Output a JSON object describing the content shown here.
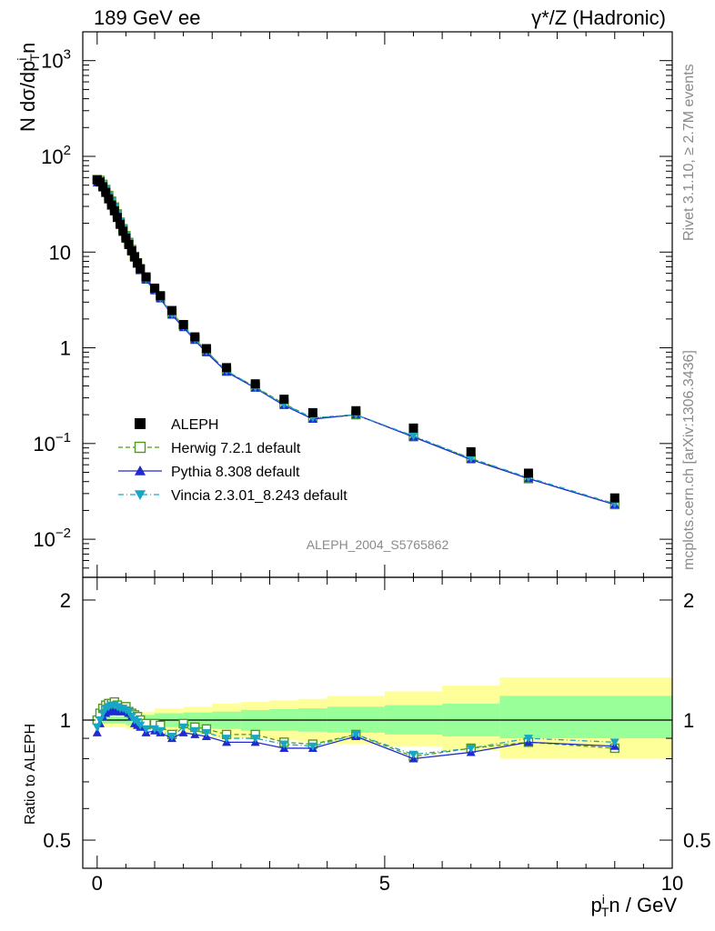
{
  "header": {
    "left_title": "189 GeV ee",
    "right_title": "γ*/Z (Hadronic)"
  },
  "side_labels": {
    "rivet": "Rivet 3.1.10, ≥ 2.7M events",
    "mcplots": "mcplots.cern.ch [arXiv:1306.3436]"
  },
  "watermark": "ALEPH_2004_S5765862",
  "chart_data": [
    {
      "panel": "main",
      "type": "scatter",
      "yscale": "log",
      "ylabel": "N dσ/dp",
      "ylabel_sup": "i",
      "ylabel_sub": "T",
      "ylabel_tail": "n",
      "xlim": [
        -0.25,
        10.0
      ],
      "ylim": [
        0.004,
        2000
      ],
      "yticks": [
        {
          "value": 0.01,
          "base": "10",
          "exp": "−2"
        },
        {
          "value": 0.1,
          "base": "10",
          "exp": "−1"
        },
        {
          "value": 1,
          "base": "1",
          "exp": ""
        },
        {
          "value": 10,
          "base": "10",
          "exp": ""
        },
        {
          "value": 100,
          "base": "10",
          "exp": "2"
        },
        {
          "value": 1000,
          "base": "10",
          "exp": "3"
        }
      ],
      "x": [
        0.0,
        0.05,
        0.1,
        0.15,
        0.2,
        0.25,
        0.3,
        0.35,
        0.4,
        0.45,
        0.5,
        0.55,
        0.6,
        0.65,
        0.7,
        0.75,
        0.85,
        1.0,
        1.1,
        1.3,
        1.5,
        1.7,
        1.9,
        2.25,
        2.75,
        3.25,
        3.75,
        4.5,
        5.5,
        6.5,
        7.5,
        9.0
      ],
      "series": [
        {
          "name": "ALEPH",
          "color": "#000000",
          "marker": "square-filled",
          "values": [
            57,
            54,
            48,
            42,
            36,
            31,
            27,
            23,
            19.5,
            16.5,
            14,
            12,
            10.3,
            8.9,
            7.7,
            6.7,
            5.5,
            4.2,
            3.5,
            2.45,
            1.75,
            1.3,
            0.98,
            0.62,
            0.42,
            0.29,
            0.21,
            0.22,
            0.145,
            0.082,
            0.049,
            0.027
          ]
        },
        {
          "name": "Herwig 7.2.1 default",
          "color": "#4f9a1e",
          "marker": "square-open",
          "dash": "5,3",
          "values": [
            57,
            56,
            51,
            45,
            39,
            34,
            29.5,
            25,
            20.5,
            17.5,
            14.8,
            12.6,
            10.6,
            9.0,
            7.7,
            6.6,
            5.3,
            4.1,
            3.4,
            2.3,
            1.72,
            1.24,
            0.93,
            0.57,
            0.39,
            0.26,
            0.185,
            0.2,
            0.118,
            0.07,
            0.043,
            0.023
          ]
        },
        {
          "name": "Pythia 8.308 default",
          "color": "#1f2ad1",
          "marker": "triangle-up-filled",
          "values": [
            53,
            53,
            49,
            43.5,
            38,
            33,
            28.5,
            24.3,
            20.5,
            17.3,
            14.5,
            12.3,
            10.3,
            8.7,
            7.5,
            6.4,
            5.1,
            3.95,
            3.25,
            2.2,
            1.63,
            1.2,
            0.89,
            0.56,
            0.38,
            0.25,
            0.18,
            0.2,
            0.117,
            0.068,
            0.043,
            0.023
          ]
        },
        {
          "name": "Vincia 2.3.01_8.243 default",
          "color": "#17a6c4",
          "marker": "triangle-down-filled",
          "dash": "6,3,1,3",
          "values": [
            55,
            54.5,
            50.5,
            45,
            39,
            34,
            29.5,
            25,
            21,
            17.7,
            14.8,
            12.6,
            10.5,
            8.9,
            7.6,
            6.5,
            5.2,
            4.0,
            3.3,
            2.25,
            1.68,
            1.23,
            0.92,
            0.575,
            0.385,
            0.255,
            0.185,
            0.2,
            0.12,
            0.07,
            0.044,
            0.0235
          ]
        }
      ]
    },
    {
      "panel": "ratio",
      "type": "line",
      "ylabel": "Ratio to ALEPH",
      "xlabel": "p",
      "xlabel_sup": "i",
      "xlabel_sub": "T",
      "xlabel_tail": "n / GeV",
      "xlim": [
        -0.25,
        10.0
      ],
      "ylim": [
        0.425,
        2.28
      ],
      "yscale": "log",
      "yticks": [
        "0.5",
        "1",
        "2"
      ],
      "xticks": [
        "0",
        "5",
        "10"
      ],
      "reference_line": 1.0,
      "uncertainty_bands": {
        "x_edges": [
          0.0,
          0.5,
          1.0,
          1.5,
          2.0,
          2.5,
          3.0,
          3.5,
          4.0,
          5.0,
          6.0,
          7.0,
          10.0
        ],
        "yellow_low": [
          0.96,
          0.95,
          0.93,
          0.92,
          0.9,
          0.9,
          0.89,
          0.88,
          0.87,
          0.86,
          0.84,
          0.8
        ],
        "yellow_high": [
          1.04,
          1.05,
          1.07,
          1.08,
          1.1,
          1.11,
          1.12,
          1.13,
          1.15,
          1.18,
          1.22,
          1.28
        ],
        "green_low": [
          0.98,
          0.97,
          0.96,
          0.955,
          0.95,
          0.94,
          0.94,
          0.935,
          0.93,
          0.92,
          0.91,
          0.9
        ],
        "green_high": [
          1.02,
          1.03,
          1.04,
          1.045,
          1.05,
          1.06,
          1.065,
          1.07,
          1.08,
          1.09,
          1.1,
          1.15
        ],
        "yellow_color": "#ffff99",
        "green_color": "#99ff99"
      },
      "x": [
        0.0,
        0.05,
        0.1,
        0.15,
        0.2,
        0.25,
        0.3,
        0.35,
        0.4,
        0.45,
        0.5,
        0.55,
        0.6,
        0.65,
        0.7,
        0.75,
        0.85,
        1.0,
        1.1,
        1.3,
        1.5,
        1.7,
        1.9,
        2.25,
        2.75,
        3.25,
        3.75,
        4.5,
        5.5,
        6.5,
        7.5,
        9.0
      ],
      "series": [
        {
          "name": "Herwig 7.2.1 default",
          "color": "#4f9a1e",
          "marker": "square-open",
          "dash": "5,3",
          "values": [
            1.0,
            1.04,
            1.07,
            1.09,
            1.1,
            1.1,
            1.11,
            1.09,
            1.07,
            1.06,
            1.08,
            1.05,
            1.04,
            1.03,
            1.02,
            1.0,
            0.98,
            0.98,
            0.97,
            0.92,
            0.98,
            0.96,
            0.95,
            0.92,
            0.92,
            0.88,
            0.87,
            0.92,
            0.81,
            0.85,
            0.88,
            0.85
          ]
        },
        {
          "name": "Pythia 8.308 default",
          "color": "#1f2ad1",
          "marker": "triangle-up-filled",
          "values": [
            0.93,
            0.98,
            1.02,
            1.04,
            1.05,
            1.06,
            1.05,
            1.06,
            1.05,
            1.05,
            1.06,
            1.04,
            1.02,
            0.98,
            0.97,
            0.96,
            0.93,
            0.94,
            0.93,
            0.9,
            0.93,
            0.92,
            0.91,
            0.88,
            0.88,
            0.85,
            0.85,
            0.91,
            0.8,
            0.83,
            0.88,
            0.86
          ]
        },
        {
          "name": "Vincia 2.3.01_8.243 default",
          "color": "#17a6c4",
          "marker": "triangle-down-filled",
          "dash": "6,3,1,3",
          "values": [
            0.96,
            1.0,
            1.04,
            1.07,
            1.08,
            1.09,
            1.09,
            1.08,
            1.07,
            1.07,
            1.06,
            1.05,
            1.02,
            1.0,
            0.99,
            0.97,
            0.95,
            0.95,
            0.94,
            0.91,
            0.96,
            0.94,
            0.93,
            0.9,
            0.9,
            0.87,
            0.86,
            0.92,
            0.82,
            0.85,
            0.9,
            0.88
          ]
        }
      ]
    }
  ]
}
